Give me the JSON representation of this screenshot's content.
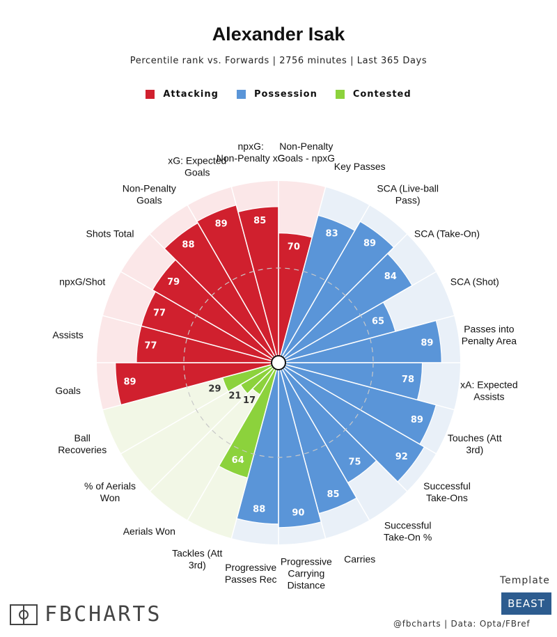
{
  "header": {
    "title": "Alexander Isak",
    "subtitle": "Percentile rank vs. Forwards | 2756 minutes | Last 365 Days"
  },
  "legend": [
    {
      "label": "Attacking",
      "color": "#d0202e"
    },
    {
      "label": "Possession",
      "color": "#5a95d8"
    },
    {
      "label": "Contested",
      "color": "#8cd23c"
    }
  ],
  "chart_data": {
    "type": "polar-bar",
    "title": "Alexander Isak",
    "subtitle": "Percentile rank vs. Forwards | 2756 minutes | Last 365 Days",
    "rlim": [
      0,
      100
    ],
    "reference_ring": 50,
    "colors": {
      "Attacking": {
        "bar": "#d0202e",
        "background": "#fbe7e8"
      },
      "Possession": {
        "bar": "#5a95d8",
        "background": "#e9f0f8"
      },
      "Contested": {
        "bar": "#8cd23c",
        "background": "#f2f7e6"
      }
    },
    "categories": [
      {
        "label": "Non-Penalty Goals - npxG",
        "value": 70,
        "group": "Attacking"
      },
      {
        "label": "Key Passes",
        "value": 83,
        "group": "Possession"
      },
      {
        "label": "SCA (Live-ball Pass)",
        "value": 89,
        "group": "Possession"
      },
      {
        "label": "SCA (Take-On)",
        "value": 84,
        "group": "Possession"
      },
      {
        "label": "SCA (Shot)",
        "value": 65,
        "group": "Possession"
      },
      {
        "label": "Passes into Penalty Area",
        "value": 89,
        "group": "Possession"
      },
      {
        "label": "xA: Expected Assists",
        "value": 78,
        "group": "Possession"
      },
      {
        "label": "Touches (Att 3rd)",
        "value": 89,
        "group": "Possession"
      },
      {
        "label": "Successful Take-Ons",
        "value": 92,
        "group": "Possession"
      },
      {
        "label": "Successful Take-On %",
        "value": 75,
        "group": "Possession"
      },
      {
        "label": "Carries",
        "value": 85,
        "group": "Possession"
      },
      {
        "label": "Progressive Carrying Distance",
        "value": 90,
        "group": "Possession"
      },
      {
        "label": "Progressive Passes Rec",
        "value": 88,
        "group": "Possession"
      },
      {
        "label": "Tackles (Att 3rd)",
        "value": 64,
        "group": "Contested"
      },
      {
        "label": "Aerials Won",
        "value": 17,
        "group": "Contested"
      },
      {
        "label": "% of Aerials Won",
        "value": 21,
        "group": "Contested"
      },
      {
        "label": "Ball Recoveries",
        "value": 29,
        "group": "Contested"
      },
      {
        "label": "Goals",
        "value": 89,
        "group": "Attacking"
      },
      {
        "label": "Assists",
        "value": 77,
        "group": "Attacking"
      },
      {
        "label": "npxG/Shot",
        "value": 77,
        "group": "Attacking"
      },
      {
        "label": "Shots Total",
        "value": 79,
        "group": "Attacking"
      },
      {
        "label": "Non-Penalty Goals",
        "value": 88,
        "group": "Attacking"
      },
      {
        "label": "xG: Expected Goals",
        "value": 89,
        "group": "Attacking"
      },
      {
        "label": "npxG: Non-Penalty xG",
        "value": 85,
        "group": "Attacking"
      }
    ]
  },
  "footer": {
    "logo_text": "FBCHARTS",
    "template_label": "Template",
    "template_badge": "BEAST",
    "credit": "@fbcharts | Data: Opta/FBref"
  }
}
